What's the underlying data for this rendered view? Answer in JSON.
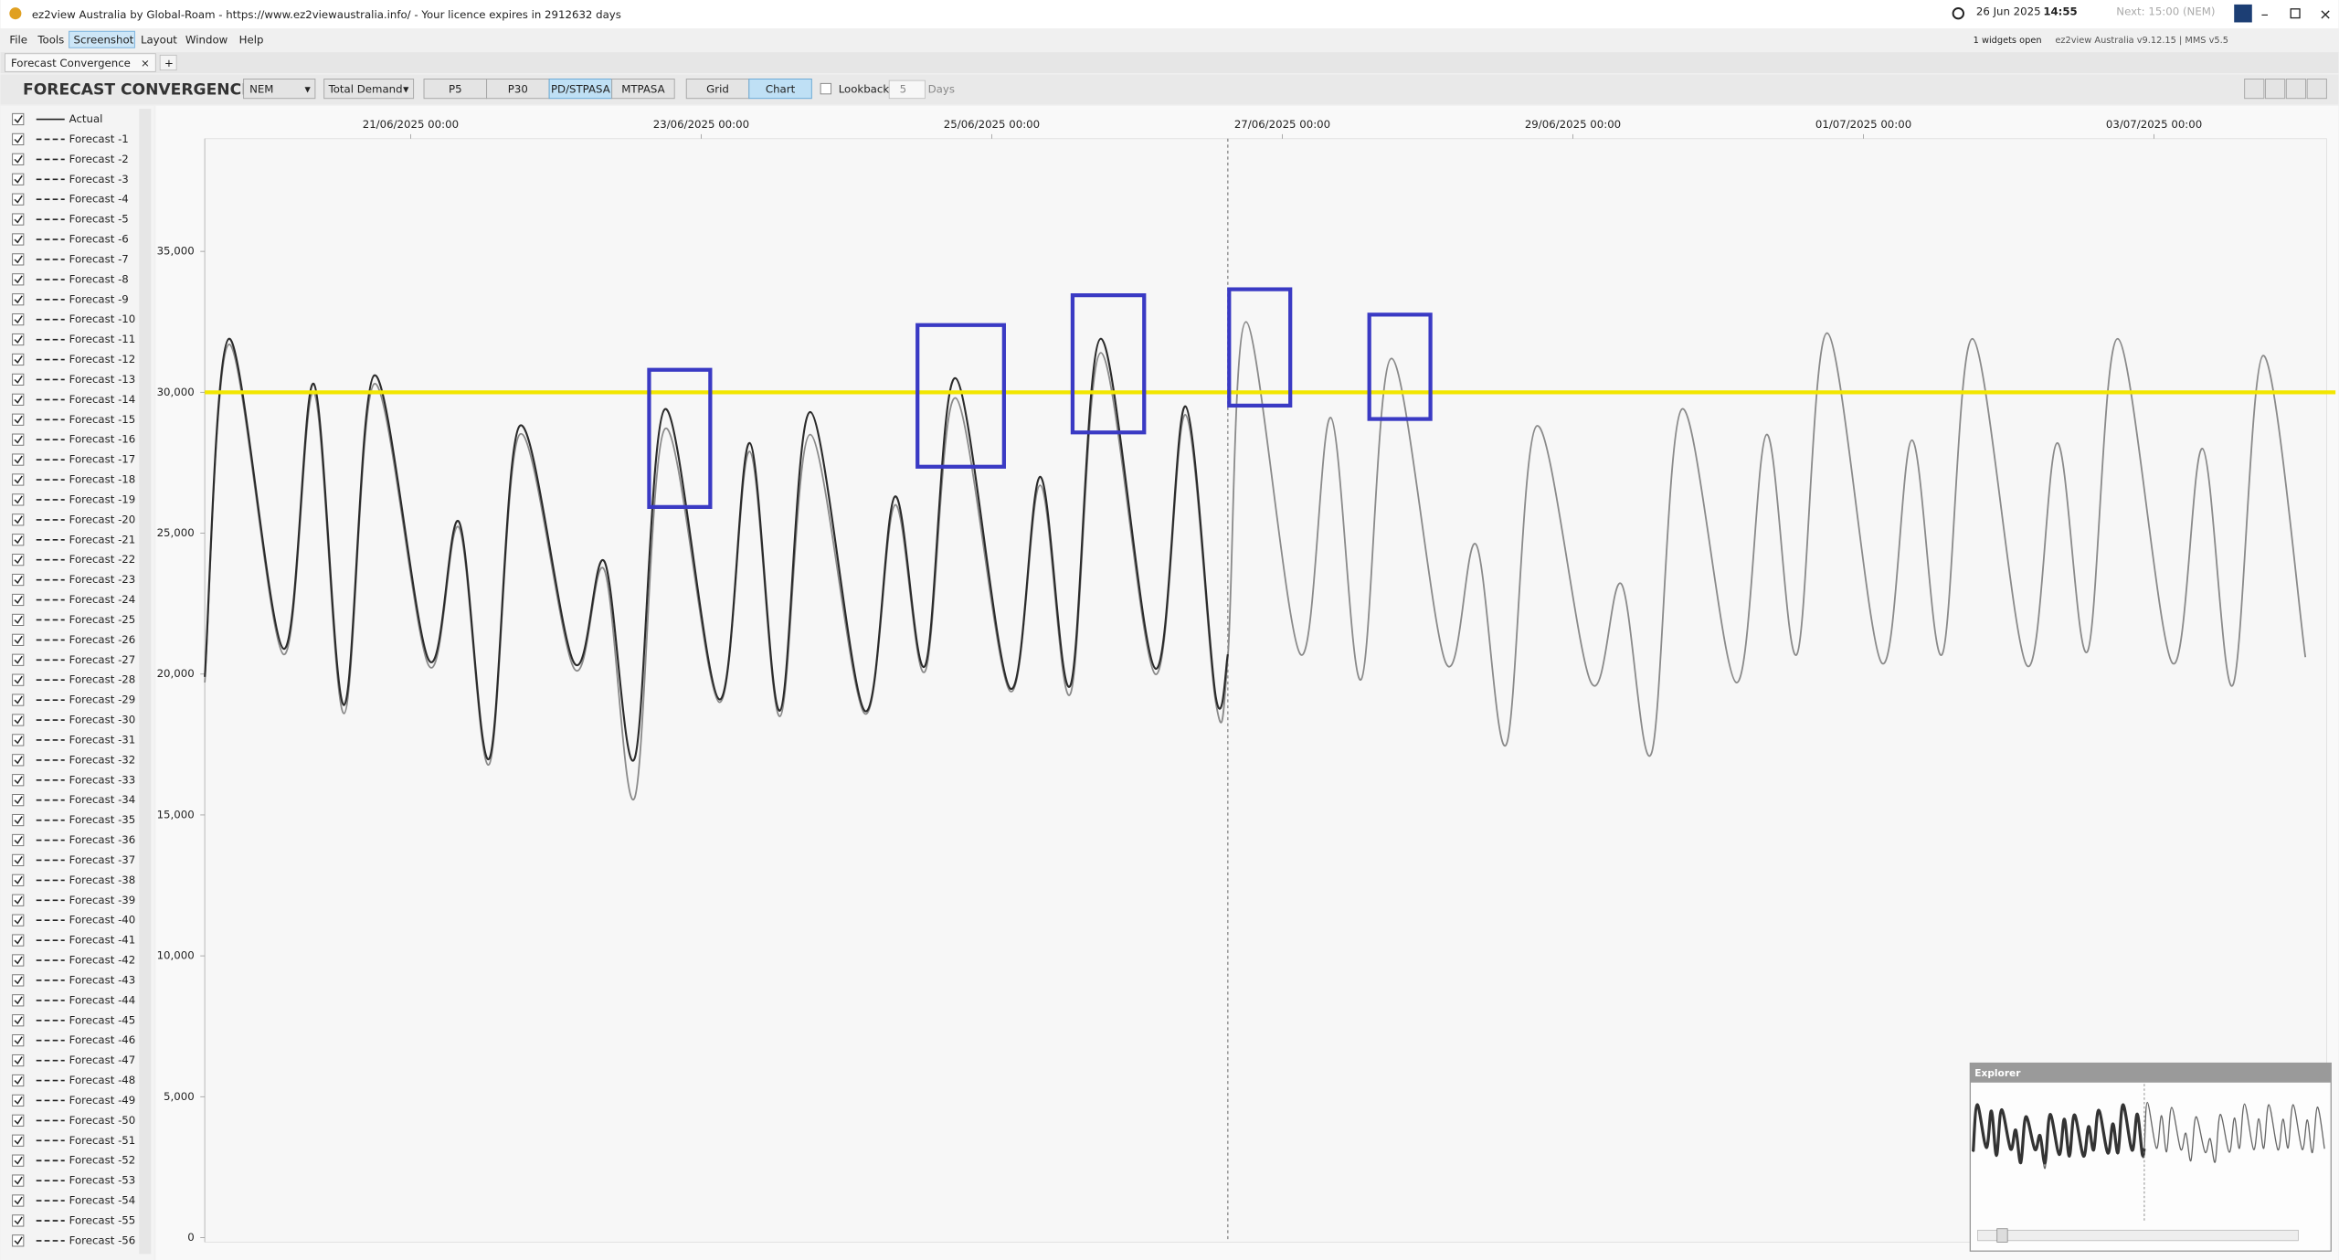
{
  "window": {
    "title": "ez2view Australia by Global-Roam - https://www.ez2viewaustralia.info/ - Your licence expires in 2912632 days",
    "date": "26 Jun 2025",
    "time": "14:55",
    "next": "Next: 15:00 (NEM)",
    "widgets": "1 widgets open",
    "version": "ez2view Australia v9.12.15 | MMS v5.5"
  },
  "menu": [
    "File",
    "Tools",
    "Screenshot",
    "Layout",
    "Window",
    "Help"
  ],
  "tabs": {
    "active": "Forecast Convergence",
    "add": "+"
  },
  "toolbar": {
    "title": "FORECAST CONVERGENCE",
    "region": "NEM",
    "measure": "Total Demand",
    "sources": [
      "P5",
      "P30",
      "PD/STPASA",
      "MTPASA"
    ],
    "views": [
      "Grid",
      "Chart"
    ],
    "lookback_label": "Lookback",
    "lookback": 5,
    "lookback_unit": "Days"
  },
  "explorer": {
    "title": "Explorer"
  },
  "chart_data": {
    "type": "line",
    "x": [
      "19/06/2025 14:00",
      "19/06/2025 18:00",
      "20/06/2025 03:00",
      "20/06/2025 08:00",
      "20/06/2025 13:00",
      "20/06/2025 18:00",
      "21/06/2025 03:00",
      "21/06/2025 08:00",
      "21/06/2025 13:00",
      "21/06/2025 18:00",
      "22/06/2025 03:00",
      "22/06/2025 08:00",
      "22/06/2025 13:00",
      "22/06/2025 18:00",
      "23/06/2025 03:00",
      "23/06/2025 08:00",
      "23/06/2025 13:00",
      "23/06/2025 18:00",
      "24/06/2025 03:00",
      "24/06/2025 08:00",
      "24/06/2025 13:00",
      "24/06/2025 18:00",
      "25/06/2025 03:00",
      "25/06/2025 08:00",
      "25/06/2025 13:00",
      "25/06/2025 18:00",
      "26/06/2025 03:00",
      "26/06/2025 08:00",
      "26/06/2025 13:00",
      "26/06/2025 15:00",
      "26/06/2025 18:00",
      "27/06/2025 03:00",
      "27/06/2025 08:00",
      "27/06/2025 13:00",
      "27/06/2025 18:00",
      "28/06/2025 03:00",
      "28/06/2025 08:00",
      "28/06/2025 13:00",
      "28/06/2025 18:00",
      "29/06/2025 03:00",
      "29/06/2025 08:00",
      "29/06/2025 13:00",
      "29/06/2025 18:00",
      "30/06/2025 03:00",
      "30/06/2025 08:00",
      "30/06/2025 13:00",
      "30/06/2025 18:00",
      "01/07/2025 03:00",
      "01/07/2025 08:00",
      "01/07/2025 13:00",
      "01/07/2025 18:00",
      "02/07/2025 03:00",
      "02/07/2025 08:00",
      "02/07/2025 13:00",
      "02/07/2025 18:00",
      "03/07/2025 03:00",
      "03/07/2025 08:00",
      "03/07/2025 13:00",
      "03/07/2025 18:00",
      "04/07/2025 01:00"
    ],
    "series": [
      {
        "name": "Actual",
        "color": "#2b2b2b",
        "line_style": "solid",
        "values": [
          19900,
          31900,
          20900,
          30300,
          18900,
          30600,
          20500,
          25400,
          17000,
          28800,
          20400,
          24000,
          17000,
          29400,
          19100,
          28200,
          18700,
          29300,
          18700,
          26300,
          20300,
          30500,
          19500,
          27000,
          19600,
          31900,
          20200,
          29500,
          19200,
          20700,
          null,
          null,
          null,
          null,
          null,
          null,
          null,
          null,
          null,
          null,
          null,
          null,
          null,
          null,
          null,
          null,
          null,
          null,
          null,
          null,
          null,
          null,
          null,
          null,
          null,
          null,
          null,
          null,
          null,
          null
        ]
      },
      {
        "name": "Forecast -1",
        "color": "#8a8a8a",
        "line_style": "dashed",
        "values": [
          19700,
          31700,
          20700,
          30000,
          18600,
          30300,
          20300,
          25200,
          16800,
          28500,
          20200,
          23700,
          15600,
          28700,
          19000,
          27900,
          18500,
          28500,
          18600,
          26000,
          20100,
          29800,
          19400,
          26700,
          19300,
          31400,
          20000,
          29200,
          19000,
          20600,
          32500,
          20700,
          29100,
          19800,
          31200,
          20400,
          24600,
          17500,
          28800,
          19700,
          23200,
          17200,
          29400,
          19700,
          28500,
          20700,
          32100,
          20400,
          28300,
          20700,
          31900,
          20300,
          28200,
          20800,
          31900,
          20400,
          28000,
          19600,
          31300,
          20600
        ]
      }
    ],
    "other_series": [
      "Forecast -2",
      "Forecast -3",
      "Forecast -4",
      "Forecast -5",
      "Forecast -6",
      "Forecast -7",
      "Forecast -8",
      "Forecast -9",
      "Forecast -10",
      "Forecast -11",
      "Forecast -12",
      "Forecast -13",
      "Forecast -14",
      "Forecast -15",
      "Forecast -16",
      "Forecast -17",
      "Forecast -18",
      "Forecast -19",
      "Forecast -20",
      "Forecast -21",
      "Forecast -22",
      "Forecast -23",
      "Forecast -24",
      "Forecast -25",
      "Forecast -26",
      "Forecast -27",
      "Forecast -28",
      "Forecast -29",
      "Forecast -30",
      "Forecast -31",
      "Forecast -32",
      "Forecast -33",
      "Forecast -34",
      "Forecast -35",
      "Forecast -36",
      "Forecast -37",
      "Forecast -38",
      "Forecast -39",
      "Forecast -40",
      "Forecast -41",
      "Forecast -42",
      "Forecast -43",
      "Forecast -44",
      "Forecast -45",
      "Forecast -46",
      "Forecast -47",
      "Forecast -48",
      "Forecast -49",
      "Forecast -50",
      "Forecast -51",
      "Forecast -52",
      "Forecast -53",
      "Forecast -54",
      "Forecast -55",
      "Forecast -56"
    ],
    "other_series_style": "dashed",
    "xlim": [
      "19/06/2025 14:00",
      "04/07/2025 04:30"
    ],
    "xticks": [
      "21/06/2025 00:00",
      "23/06/2025 00:00",
      "25/06/2025 00:00",
      "27/06/2025 00:00",
      "29/06/2025 00:00",
      "01/07/2025 00:00",
      "03/07/2025 00:00"
    ],
    "ylim": [
      0,
      39000
    ],
    "yticks": [
      0,
      {
        "value": 5000,
        "label": "5,000"
      },
      {
        "value": 10000,
        "label": "10,000"
      },
      {
        "value": 15000,
        "label": "15,000"
      },
      {
        "value": 20000,
        "label": "20,000"
      },
      {
        "value": 25000,
        "label": "25,000"
      },
      {
        "value": 30000,
        "label": "30,000"
      },
      {
        "value": 35000,
        "label": "35,000"
      }
    ],
    "now_line": "26/06/2025 15:00",
    "highlight_line": 30000,
    "highlight_color": "#f2e600",
    "grid": false
  }
}
